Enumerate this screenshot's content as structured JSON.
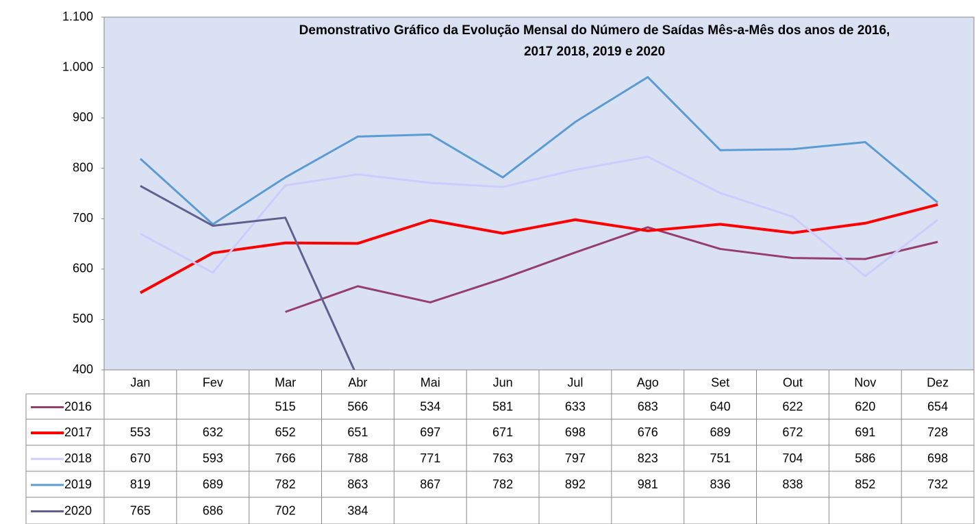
{
  "chart_data": {
    "type": "line",
    "title": [
      "Demonstrativo Gráfico da Evolução  Mensal do Número de Saídas Mês-a-Mês dos anos de  2016,",
      "2017 2018, 2019 e 2020"
    ],
    "categories": [
      "Jan",
      "Fev",
      "Mar",
      "Abr",
      "Mai",
      "Jun",
      "Jul",
      "Ago",
      "Set",
      "Out",
      "Nov",
      "Dez"
    ],
    "series": [
      {
        "name": "2016",
        "color": "#953e6e",
        "values": [
          null,
          null,
          515,
          566,
          534,
          581,
          633,
          683,
          640,
          622,
          620,
          654
        ]
      },
      {
        "name": "2017",
        "color": "#ff0000",
        "values": [
          553,
          632,
          652,
          651,
          697,
          671,
          698,
          676,
          689,
          672,
          691,
          728
        ]
      },
      {
        "name": "2018",
        "color": "#ccccff",
        "values": [
          670,
          593,
          766,
          788,
          771,
          763,
          797,
          823,
          751,
          704,
          586,
          698
        ]
      },
      {
        "name": "2019",
        "color": "#5b9bd5",
        "values": [
          819,
          689,
          782,
          863,
          867,
          782,
          892,
          981,
          836,
          838,
          852,
          732
        ]
      },
      {
        "name": "2020",
        "color": "#60608f",
        "values": [
          765,
          686,
          702,
          384,
          null,
          null,
          null,
          null,
          null,
          null,
          null,
          null
        ]
      }
    ],
    "ylim": [
      400,
      1100
    ],
    "yticks": [
      400,
      500,
      600,
      700,
      800,
      900,
      {
        "value": 1000,
        "label": "1.000"
      },
      {
        "value": 1100,
        "label": "1.100"
      }
    ],
    "grid": false,
    "data_table": true
  }
}
